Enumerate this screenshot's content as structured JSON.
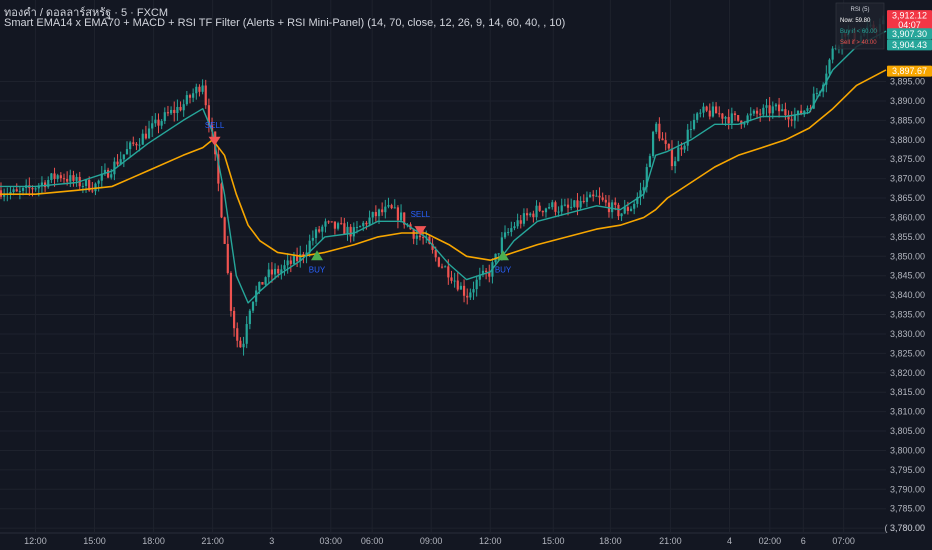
{
  "header": {
    "symbol": "ทองคำ / ดอลลาร์สหรัฐ · 5 · FXCM",
    "indicator": "Smart EMA14 x EMA70 + MACD + RSI TF Filter (Alerts + RSI Mini-Panel) (14, 70, close, 12, 26, 9, 14, 60, 40, , 10)"
  },
  "colors": {
    "background": "#131722",
    "grid": "#1e222d",
    "candle_up": "#26a69a",
    "candle_down": "#ef5350",
    "ema_fast": "#26a69a",
    "ema_slow": "#f7a600",
    "buy_marker": "#4caf50",
    "sell_marker": "#f05454",
    "signal_text": "#2962ff"
  },
  "chart_data": {
    "type": "candlestick",
    "y_axis": {
      "ticks": [
        "3,780.00",
        "3,785.00",
        "3,790.00",
        "3,795.00",
        "3,800.00",
        "3,805.00",
        "3,810.00",
        "3,815.00",
        "3,820.00",
        "3,825.00",
        "3,830.00",
        "3,835.00",
        "3,840.00",
        "3,845.00",
        "3,850.00",
        "3,855.00",
        "3,860.00",
        "3,865.00",
        "3,870.00",
        "3,875.00",
        "3,880.00",
        "3,885.00",
        "3,890.00",
        "3,895.00"
      ],
      "range": [
        3779,
        3916
      ]
    },
    "x_axis": {
      "range": [
        0,
        900
      ],
      "ticks": [
        {
          "t": 36,
          "label": "12:00"
        },
        {
          "t": 96,
          "label": "15:00"
        },
        {
          "t": 156,
          "label": "18:00"
        },
        {
          "t": 216,
          "label": "21:00"
        },
        {
          "t": 276,
          "label": "3"
        },
        {
          "t": 336,
          "label": "03:00"
        },
        {
          "t": 378,
          "label": "06:00"
        },
        {
          "t": 438,
          "label": "09:00"
        },
        {
          "t": 498,
          "label": "12:00"
        },
        {
          "t": 562,
          "label": "15:00"
        },
        {
          "t": 620,
          "label": "18:00"
        },
        {
          "t": 681,
          "label": "21:00"
        },
        {
          "t": 741,
          "label": "4"
        },
        {
          "t": 782,
          "label": "02:00"
        },
        {
          "t": 816,
          "label": "6"
        },
        {
          "t": 857,
          "label": "07:00"
        }
      ]
    },
    "price_path": [
      [
        0,
        3867
      ],
      [
        18,
        3866
      ],
      [
        36,
        3868
      ],
      [
        60,
        3871
      ],
      [
        78,
        3869
      ],
      [
        96,
        3868
      ],
      [
        114,
        3873
      ],
      [
        132,
        3878
      ],
      [
        150,
        3882
      ],
      [
        168,
        3886
      ],
      [
        186,
        3889
      ],
      [
        200,
        3893
      ],
      [
        206,
        3895
      ],
      [
        210,
        3888
      ],
      [
        216,
        3880
      ],
      [
        222,
        3868
      ],
      [
        228,
        3855
      ],
      [
        234,
        3838
      ],
      [
        240,
        3829
      ],
      [
        246,
        3826
      ],
      [
        252,
        3836
      ],
      [
        258,
        3840
      ],
      [
        264,
        3842
      ],
      [
        270,
        3845
      ],
      [
        282,
        3846
      ],
      [
        294,
        3848
      ],
      [
        306,
        3850
      ],
      [
        318,
        3855
      ],
      [
        330,
        3858
      ],
      [
        348,
        3857
      ],
      [
        360,
        3856
      ],
      [
        372,
        3859
      ],
      [
        384,
        3861
      ],
      [
        396,
        3862
      ],
      [
        408,
        3860
      ],
      [
        420,
        3856
      ],
      [
        432,
        3854
      ],
      [
        444,
        3849
      ],
      [
        456,
        3846
      ],
      [
        468,
        3842
      ],
      [
        474,
        3840
      ],
      [
        486,
        3844
      ],
      [
        498,
        3846
      ],
      [
        510,
        3854
      ],
      [
        522,
        3858
      ],
      [
        534,
        3860
      ],
      [
        546,
        3862
      ],
      [
        558,
        3863
      ],
      [
        576,
        3862
      ],
      [
        594,
        3864
      ],
      [
        606,
        3865
      ],
      [
        618,
        3863
      ],
      [
        630,
        3861
      ],
      [
        642,
        3863
      ],
      [
        654,
        3868
      ],
      [
        660,
        3877
      ],
      [
        666,
        3884
      ],
      [
        672,
        3880
      ],
      [
        678,
        3877
      ],
      [
        684,
        3874
      ],
      [
        690,
        3878
      ],
      [
        696,
        3880
      ],
      [
        702,
        3884
      ],
      [
        714,
        3887
      ],
      [
        726,
        3887
      ],
      [
        738,
        3886
      ],
      [
        750,
        3885
      ],
      [
        762,
        3886
      ],
      [
        774,
        3887
      ],
      [
        786,
        3888
      ],
      [
        798,
        3887
      ],
      [
        810,
        3886
      ],
      [
        822,
        3889
      ],
      [
        834,
        3894
      ],
      [
        846,
        3903
      ],
      [
        858,
        3908
      ],
      [
        870,
        3906
      ],
      [
        882,
        3908
      ],
      [
        900,
        3910
      ]
    ],
    "ema14_path": [
      [
        0,
        3868
      ],
      [
        36,
        3868
      ],
      [
        78,
        3869
      ],
      [
        114,
        3872
      ],
      [
        150,
        3879
      ],
      [
        186,
        3885
      ],
      [
        206,
        3888
      ],
      [
        216,
        3882
      ],
      [
        228,
        3866
      ],
      [
        240,
        3845
      ],
      [
        252,
        3838
      ],
      [
        264,
        3841
      ],
      [
        282,
        3845
      ],
      [
        306,
        3849
      ],
      [
        330,
        3855
      ],
      [
        360,
        3856
      ],
      [
        384,
        3859
      ],
      [
        408,
        3859
      ],
      [
        432,
        3855
      ],
      [
        456,
        3848
      ],
      [
        474,
        3844
      ],
      [
        498,
        3846
      ],
      [
        522,
        3854
      ],
      [
        546,
        3859
      ],
      [
        576,
        3861
      ],
      [
        606,
        3863
      ],
      [
        630,
        3862
      ],
      [
        654,
        3866
      ],
      [
        666,
        3876
      ],
      [
        678,
        3877
      ],
      [
        702,
        3880
      ],
      [
        726,
        3884
      ],
      [
        750,
        3884
      ],
      [
        774,
        3886
      ],
      [
        798,
        3886
      ],
      [
        822,
        3887
      ],
      [
        846,
        3898
      ],
      [
        870,
        3904
      ],
      [
        900,
        3908
      ]
    ],
    "ema70_path": [
      [
        0,
        3866
      ],
      [
        36,
        3866
      ],
      [
        78,
        3867
      ],
      [
        114,
        3868
      ],
      [
        150,
        3872
      ],
      [
        186,
        3876
      ],
      [
        206,
        3878
      ],
      [
        216,
        3880
      ],
      [
        228,
        3876
      ],
      [
        240,
        3866
      ],
      [
        252,
        3858
      ],
      [
        264,
        3854
      ],
      [
        282,
        3851
      ],
      [
        306,
        3850
      ],
      [
        330,
        3851
      ],
      [
        360,
        3853
      ],
      [
        384,
        3855
      ],
      [
        408,
        3856
      ],
      [
        432,
        3856
      ],
      [
        456,
        3853
      ],
      [
        474,
        3850
      ],
      [
        498,
        3849
      ],
      [
        522,
        3851
      ],
      [
        546,
        3853
      ],
      [
        576,
        3855
      ],
      [
        606,
        3857
      ],
      [
        630,
        3858
      ],
      [
        654,
        3860
      ],
      [
        666,
        3862
      ],
      [
        678,
        3865
      ],
      [
        702,
        3869
      ],
      [
        726,
        3873
      ],
      [
        750,
        3876
      ],
      [
        774,
        3878
      ],
      [
        798,
        3880
      ],
      [
        822,
        3883
      ],
      [
        846,
        3888
      ],
      [
        870,
        3894
      ],
      [
        900,
        3898
      ]
    ],
    "signals": [
      {
        "type": "SELL",
        "t": 218,
        "price": 3880,
        "label": "SELL"
      },
      {
        "type": "BUY",
        "t": 322,
        "price": 3850,
        "label": "BUY"
      },
      {
        "type": "SELL",
        "t": 427,
        "price": 3857,
        "label": "SELL"
      },
      {
        "type": "BUY",
        "t": 511,
        "price": 3850,
        "label": "BUY"
      }
    ],
    "price_tags": [
      {
        "value": 3912.12,
        "label": "3,912.12",
        "sublabel": "04:07",
        "color": "#f23645"
      },
      {
        "value": 3907.3,
        "label": "3,907.30",
        "color": "#26a69a"
      },
      {
        "value": 3904.43,
        "label": "3,904.43",
        "color": "#26a69a"
      },
      {
        "value": 3897.67,
        "label": "3,897.67",
        "color": "#f7a600"
      }
    ],
    "crosshair_label": "3,780.00",
    "rsi_panel": {
      "header": "RSI (5)",
      "rows": [
        {
          "label": "Now:",
          "value": "59.80",
          "color": "#ffffff"
        },
        {
          "label": "Buy if <",
          "value": "60.00",
          "color": "#26a69a"
        },
        {
          "label": "Sell if >",
          "value": "40.00",
          "color": "#ef5350"
        }
      ]
    }
  }
}
